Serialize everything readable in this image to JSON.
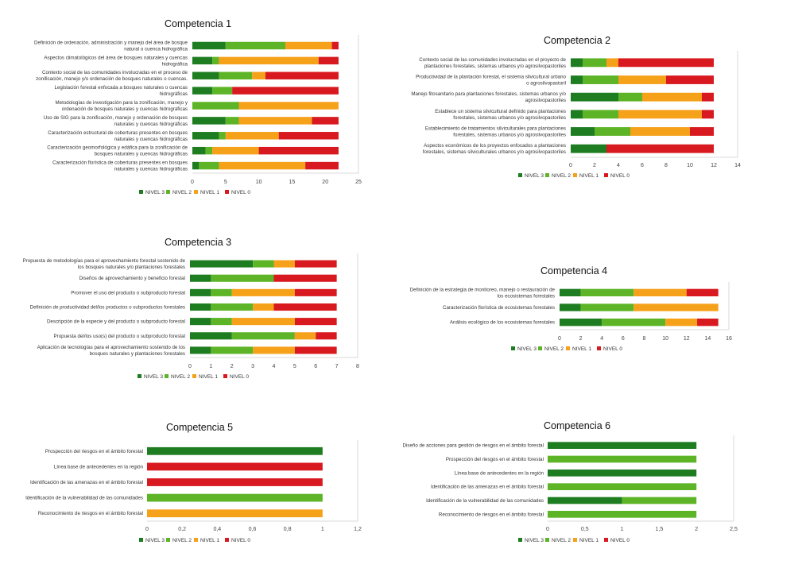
{
  "legend_labels": [
    "NIVEL 3",
    "NIVEL 2",
    "NIVEL 1",
    "NIVEL 0"
  ],
  "colors": [
    "#1e7d21",
    "#5cb426",
    "#f6a11a",
    "#d8191f"
  ],
  "chart_data": [
    {
      "type": "bar",
      "orientation": "horizontal",
      "stacked": true,
      "title": "Competencia 1",
      "categories": [
        "Definición de ordenación, administración y manejo del área de bosque natural o cuenca hidrográfica",
        "Aspectos climatológicos del área de bosques naturales y cuencas hidrográfica",
        "Contexto social de las comunidades involucradas en el proceso de zonificación, manejo y/o ordenación de bosques naturales o cuencas.",
        "Legislación forestal enfocada a bosques naturales o cuencas hidrográficas",
        "Metodologías de investigación para la zonificación, manejo y ordenación de bosques naturales y cuencas hidrográficas",
        "Uso de SIG para la zonificación, manejo y ordenación de bosques naturales y cuencas hidrográficas",
        "Caracterización estructural de coberturas presentes en bosques naturales y cuencas hidrográficas",
        "Caracterización geomorfológica y edáfica para la zonificación de bosques naturales y cuencas hidrográficas",
        "Caracterización florística de coberturas presentes en bosques naturales y cuencas hidrográficas"
      ],
      "series": [
        {
          "name": "NIVEL 3",
          "values": [
            5,
            3,
            4,
            3,
            0,
            5,
            4,
            2,
            1
          ]
        },
        {
          "name": "NIVEL 2",
          "values": [
            9,
            1,
            5,
            3,
            7,
            2,
            1,
            1,
            3
          ]
        },
        {
          "name": "NIVEL 1",
          "values": [
            7,
            15,
            2,
            0,
            15,
            11,
            8,
            7,
            13
          ]
        },
        {
          "name": "NIVEL 0",
          "values": [
            1,
            3,
            11,
            16,
            0,
            4,
            9,
            12,
            5
          ]
        }
      ],
      "xlim": [
        0,
        25
      ],
      "xticks": [
        "0",
        "5",
        "10",
        "15",
        "20",
        "25"
      ]
    },
    {
      "type": "bar",
      "orientation": "horizontal",
      "stacked": true,
      "title": "Competencia 2",
      "categories": [
        "Contexto social de las comunidades involucradas en el proyecto de plantaciones forestales, sistemas urbanos y/o agrosilvopastoriles",
        "Productividad de la plantación forestal, el sistema silvicultural urbano o agrosilvopastoril",
        "Manejo fitosanitario para plantaciones forestales, sistemas urbanos y/o agrosilvopastoriles",
        "Establece un sistema silvicultural definido para plantaciones forestales, sistemas urbanos y/o agrosilvopastoriles",
        "Establecimiento de tratamientos silviculturales para plantaciones forestales, sistemas urbanos y/o agrosilvopastoriles",
        "Aspectos económicos de los proyectos enfocados a plantaciones forestales, sistemas silviculturales urbanos y/o agrosilvopastoriles"
      ],
      "series": [
        {
          "name": "NIVEL 3",
          "values": [
            1,
            1,
            4,
            1,
            2,
            3
          ]
        },
        {
          "name": "NIVEL 2",
          "values": [
            2,
            3,
            2,
            3,
            3,
            0
          ]
        },
        {
          "name": "NIVEL 1",
          "values": [
            1,
            4,
            5,
            7,
            5,
            0
          ]
        },
        {
          "name": "NIVEL 0",
          "values": [
            8,
            4,
            1,
            1,
            2,
            9
          ]
        }
      ],
      "xlim": [
        0,
        14
      ],
      "xticks": [
        "0",
        "2",
        "4",
        "6",
        "8",
        "10",
        "12",
        "14"
      ]
    },
    {
      "type": "bar",
      "orientation": "horizontal",
      "stacked": true,
      "title": "Competencia 3",
      "categories": [
        "Propuesta de metodologías para el aprovechamiento forestal sostenido de los bosques naturales y/o plantaciones forestales",
        "Diseños de aprovechamiento y beneficio forestal",
        "Promover el uso del producto o subproducto forestal",
        "Definición de productividad del/los productos o subproductos forestales",
        "Descripción de la especie y del producto o subproducto forestal",
        "Propuesta del/los uso(s) del producto o subproducto forestal",
        "Aplicación de tecnologías para el aprovechamiento sostenido de los bosques naturales y plantaciones forestales"
      ],
      "series": [
        {
          "name": "NIVEL 3",
          "values": [
            3,
            1,
            1,
            1,
            1,
            2,
            1
          ]
        },
        {
          "name": "NIVEL 2",
          "values": [
            1,
            3,
            1,
            2,
            1,
            3,
            2
          ]
        },
        {
          "name": "NIVEL 1",
          "values": [
            1,
            0,
            3,
            1,
            3,
            1,
            2
          ]
        },
        {
          "name": "NIVEL 0",
          "values": [
            2,
            3,
            2,
            3,
            2,
            1,
            2
          ]
        }
      ],
      "xlim": [
        0,
        8
      ],
      "xticks": [
        "0",
        "1",
        "2",
        "3",
        "4",
        "5",
        "6",
        "7",
        "8"
      ]
    },
    {
      "type": "bar",
      "orientation": "horizontal",
      "stacked": true,
      "title": "Competencia 4",
      "categories": [
        "Definición de la estrategia de monitoreo, manejo o restauración de los ecosistemas forestales",
        "Caracterización florística de ecosistemas forestales",
        "Análisis ecológico de los ecosistemas forestales"
      ],
      "series": [
        {
          "name": "NIVEL 3",
          "values": [
            2,
            2,
            4
          ]
        },
        {
          "name": "NIVEL 2",
          "values": [
            5,
            5,
            6
          ]
        },
        {
          "name": "NIVEL 1",
          "values": [
            5,
            8,
            3
          ]
        },
        {
          "name": "NIVEL 0",
          "values": [
            3,
            0,
            2
          ]
        }
      ],
      "xlim": [
        0,
        16
      ],
      "xticks": [
        "0",
        "2",
        "4",
        "6",
        "8",
        "10",
        "12",
        "14",
        "16"
      ]
    },
    {
      "type": "bar",
      "orientation": "horizontal",
      "stacked": true,
      "title": "Competencia 5",
      "categories": [
        "Prospección del riesgos en el ámbito forestal",
        "Línea base de antecedentes en la región",
        "Identificación de las amenazas en el ámbito forestal",
        "Identificación de la vulnerabilidad de las comunidades",
        "Reconocimiento de riesgos en el ámbito forestal"
      ],
      "series": [
        {
          "name": "NIVEL 3",
          "values": [
            1,
            0,
            0,
            0,
            0
          ]
        },
        {
          "name": "NIVEL 2",
          "values": [
            0,
            0,
            0,
            1,
            0
          ]
        },
        {
          "name": "NIVEL 1",
          "values": [
            0,
            0,
            0,
            0,
            1
          ]
        },
        {
          "name": "NIVEL 0",
          "values": [
            0,
            1,
            1,
            0,
            0
          ]
        }
      ],
      "xlim": [
        0,
        1.2
      ],
      "xticks": [
        "0",
        "0,2",
        "0,4",
        "0,6",
        "0,8",
        "1",
        "1,2"
      ]
    },
    {
      "type": "bar",
      "orientation": "horizontal",
      "stacked": true,
      "title": "Competencia 6",
      "categories": [
        "Diseño de acciones para gestión de riesgos en el ámbito forestal",
        "Prospección del riesgos en el ámbito forestal",
        "Línea base de antecedentes en la región",
        "Identificación de las amenazas en el ámbito forestal",
        "Identificación de la vulnerabilidad de las comunidades",
        "Reconocimiento de riesgos en el ámbito forestal"
      ],
      "series": [
        {
          "name": "NIVEL 3",
          "values": [
            2,
            0,
            2,
            0,
            1,
            0
          ]
        },
        {
          "name": "NIVEL 2",
          "values": [
            0,
            2,
            0,
            2,
            1,
            2
          ]
        },
        {
          "name": "NIVEL 1",
          "values": [
            0,
            0,
            0,
            0,
            0,
            0
          ]
        },
        {
          "name": "NIVEL 0",
          "values": [
            0,
            0,
            0,
            0,
            0,
            0
          ]
        }
      ],
      "xlim": [
        0,
        2.5
      ],
      "xticks": [
        "0",
        "0,5",
        "1",
        "1,5",
        "2",
        "2,5"
      ]
    }
  ]
}
